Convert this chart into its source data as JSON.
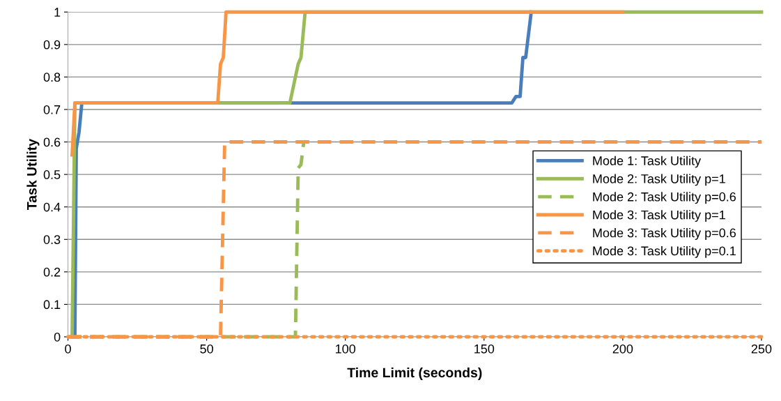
{
  "chart_data": {
    "type": "line",
    "xlabel": "Time Limit (seconds)",
    "ylabel": "Task Utility",
    "xlim": [
      0,
      250
    ],
    "xticks": [
      0,
      50,
      100,
      150,
      200,
      250
    ],
    "ylim": [
      0,
      1
    ],
    "yticks": [
      0,
      0.1,
      0.2,
      0.3,
      0.4,
      0.5,
      0.6,
      0.7,
      0.8,
      0.9,
      1
    ],
    "grid": "y",
    "legend": "center right",
    "marker": "none",
    "series": [
      {
        "name": "Mode 1: Task Utility",
        "color": "#4a7ebb",
        "line_style": "solid",
        "x": [
          2.5,
          3,
          4,
          5,
          160,
          161.5,
          163,
          164,
          165,
          167
        ],
        "values": [
          0,
          0.58,
          0.63,
          0.72,
          0.72,
          0.74,
          0.74,
          0.86,
          0.86,
          1
        ]
      },
      {
        "name": "Mode 2: Task Utility p=1",
        "color": "#9bbb59",
        "line_style": "solid",
        "x": [
          1.5,
          2.5,
          80,
          83,
          84,
          85.5,
          250
        ],
        "values": [
          0,
          0.72,
          0.72,
          0.84,
          0.86,
          1,
          1
        ]
      },
      {
        "name": "Mode 2: Task Utility p=0.6",
        "color": "#9bbb59",
        "line_style": "dashed",
        "x": [
          0,
          82,
          83,
          84,
          85
        ],
        "values": [
          0,
          0,
          0.52,
          0.53,
          0.6
        ]
      },
      {
        "name": "Mode 3: Task Utility p=1",
        "color": "#f79646",
        "line_style": "solid",
        "x": [
          1.5,
          2.5,
          54,
          55,
          56,
          57,
          200
        ],
        "values": [
          0.56,
          0.72,
          0.72,
          0.84,
          0.86,
          1,
          1
        ]
      },
      {
        "name": "Mode 3: Task Utility p=0.6",
        "color": "#f79646",
        "line_style": "dashed",
        "x": [
          0,
          55,
          56.5,
          250
        ],
        "values": [
          0,
          0,
          0.6,
          0.6
        ]
      },
      {
        "name": "Mode 3: Task Utility p=0.1",
        "color": "#f79646",
        "line_style": "dotted",
        "x": [
          0,
          250
        ],
        "values": [
          0,
          0
        ]
      }
    ]
  }
}
